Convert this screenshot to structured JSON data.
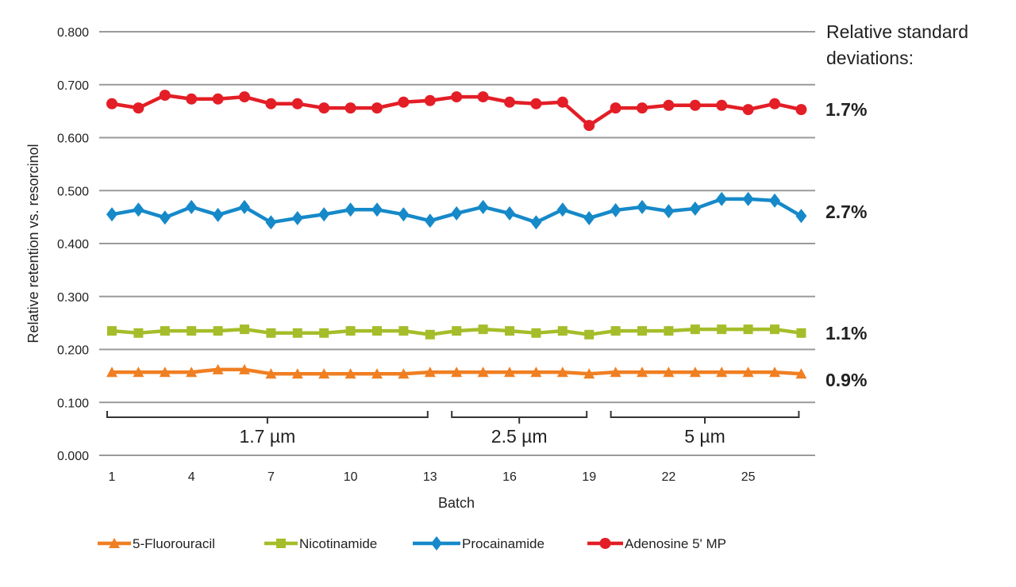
{
  "chart_data": {
    "type": "line",
    "title": "",
    "xlabel": "Batch",
    "ylabel": "Relative retention vs. resorcinol",
    "ylim": [
      0,
      0.8
    ],
    "yticks": [
      "0.000",
      "0.100",
      "0.200",
      "0.300",
      "0.400",
      "0.500",
      "0.600",
      "0.700",
      "0.800"
    ],
    "xticks": [
      "1",
      "4",
      "7",
      "10",
      "13",
      "16",
      "19",
      "22",
      "25"
    ],
    "x": [
      1,
      2,
      3,
      4,
      5,
      6,
      7,
      8,
      9,
      10,
      11,
      12,
      13,
      14,
      15,
      16,
      17,
      18,
      19,
      20,
      21,
      22,
      23,
      24,
      25,
      26,
      27
    ],
    "grid": true,
    "legend_position": "bottom",
    "series": [
      {
        "name": "5-Fluorouracil",
        "color": "#f07f22",
        "marker": "triangle",
        "rsd": "0.9%",
        "values": [
          0.157,
          0.157,
          0.157,
          0.157,
          0.162,
          0.162,
          0.154,
          0.154,
          0.154,
          0.154,
          0.154,
          0.154,
          0.157,
          0.157,
          0.157,
          0.157,
          0.157,
          0.157,
          0.154,
          0.157,
          0.157,
          0.157,
          0.157,
          0.157,
          0.157,
          0.157,
          0.154
        ]
      },
      {
        "name": "Nicotinamide",
        "color": "#a5bd2a",
        "marker": "square",
        "rsd": "1.1%",
        "values": [
          0.235,
          0.231,
          0.235,
          0.235,
          0.235,
          0.238,
          0.231,
          0.231,
          0.231,
          0.235,
          0.235,
          0.235,
          0.228,
          0.235,
          0.238,
          0.235,
          0.231,
          0.235,
          0.228,
          0.235,
          0.235,
          0.235,
          0.238,
          0.238,
          0.238,
          0.238,
          0.231
        ]
      },
      {
        "name": "Procainamide",
        "color": "#1689c9",
        "marker": "diamond",
        "rsd": "2.7%",
        "values": [
          0.455,
          0.464,
          0.449,
          0.469,
          0.454,
          0.469,
          0.44,
          0.448,
          0.455,
          0.464,
          0.464,
          0.455,
          0.443,
          0.457,
          0.469,
          0.457,
          0.44,
          0.464,
          0.448,
          0.463,
          0.469,
          0.461,
          0.466,
          0.484,
          0.484,
          0.481,
          0.452
        ]
      },
      {
        "name": "Adenosine 5' MP",
        "color": "#e31e26",
        "marker": "circle",
        "rsd": "1.7%",
        "values": [
          0.664,
          0.656,
          0.68,
          0.673,
          0.673,
          0.677,
          0.664,
          0.664,
          0.656,
          0.656,
          0.656,
          0.667,
          0.67,
          0.677,
          0.677,
          0.667,
          0.664,
          0.667,
          0.623,
          0.656,
          0.656,
          0.661,
          0.661,
          0.661,
          0.653,
          0.664,
          0.653
        ]
      }
    ],
    "groups": [
      {
        "label": "1.7 µm",
        "from": 1,
        "to": 13
      },
      {
        "label": "2.5 µm",
        "from": 14,
        "to": 19
      },
      {
        "label": "5 µm",
        "from": 20,
        "to": 27
      }
    ],
    "rsd_header": [
      "Relative standard",
      "deviations:"
    ]
  }
}
